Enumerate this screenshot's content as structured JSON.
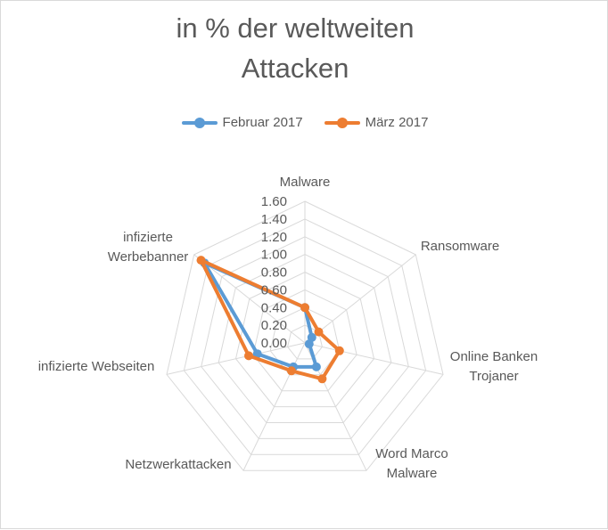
{
  "chart_data": {
    "type": "radar",
    "title": "in % der weltweiten\nAttacken",
    "categories": [
      [
        "Malware"
      ],
      [
        "Ransomware"
      ],
      [
        "Online Banken",
        "Trojaner"
      ],
      [
        "Word Marco",
        "Malware"
      ],
      [
        "Netzwerkattacken"
      ],
      [
        "infizierte Webseiten"
      ],
      [
        "infizierte",
        "Werbebanner"
      ]
    ],
    "series": [
      {
        "name": "Februar 2017",
        "color": "#5b9bd5",
        "values": [
          0.4,
          0.1,
          0.05,
          0.3,
          0.3,
          0.55,
          1.45
        ]
      },
      {
        "name": "März 2017",
        "color": "#ed7d31",
        "values": [
          0.4,
          0.2,
          0.4,
          0.45,
          0.35,
          0.65,
          1.5
        ]
      }
    ],
    "rlim": [
      0,
      1.6
    ],
    "ticks": [
      "0.00",
      "0.20",
      "0.40",
      "0.60",
      "0.80",
      "1.00",
      "1.20",
      "1.40",
      "1.60"
    ],
    "grid": true,
    "legend_position": "top"
  }
}
